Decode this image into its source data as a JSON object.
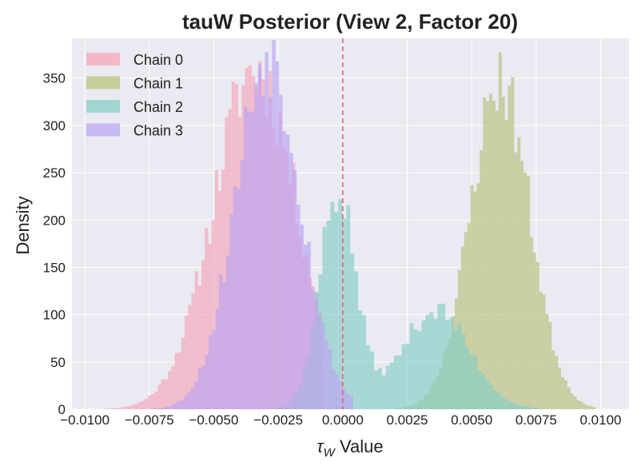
{
  "chart_data": {
    "type": "histogram",
    "title": "tauW Posterior (View 2, Factor 20)",
    "xlabel_symbol": "τ",
    "xlabel_sub": "W",
    "xlabel_rest": " Value",
    "ylabel": "Density",
    "xlim": [
      -0.0105,
      0.0111
    ],
    "ylim": [
      0,
      392
    ],
    "xticks": [
      -0.01,
      -0.0075,
      -0.005,
      -0.0025,
      0.0,
      0.0025,
      0.005,
      0.0075,
      0.01
    ],
    "xtick_labels": [
      "−0.0100",
      "−0.0075",
      "−0.0050",
      "−0.0025",
      "0.0000",
      "0.0025",
      "0.0050",
      "0.0075",
      "0.0100"
    ],
    "yticks": [
      0,
      50,
      100,
      150,
      200,
      250,
      300,
      350
    ],
    "ytick_labels": [
      "0",
      "50",
      "100",
      "150",
      "200",
      "250",
      "300",
      "350"
    ],
    "grid": true,
    "legend_position": "top-left",
    "vline": {
      "x": 0.0,
      "color": "#e8636e",
      "style": "dashed"
    },
    "series": [
      {
        "name": "Chain 0",
        "color": "#f4a7b9",
        "mode": "normal",
        "center": -0.0034,
        "sd": 0.0016,
        "peak": 360,
        "x_min": -0.0099,
        "x_max": -0.0008,
        "bins": 70,
        "seed": 11
      },
      {
        "name": "Chain 1",
        "color": "#b9c17e",
        "mode": "normal",
        "center": 0.0061,
        "sd": 0.00115,
        "peak": 348,
        "x_min": 0.0018,
        "x_max": 0.0098,
        "bins": 66,
        "seed": 23
      },
      {
        "name": "Chain 2",
        "color": "#87cfc6",
        "mode": "bimodal",
        "c1": -0.0002,
        "s1": 0.0007,
        "p1": 230,
        "c2": 0.0036,
        "s2": 0.0013,
        "p2": 105,
        "x_min": -0.0034,
        "x_max": 0.0089,
        "bins": 80,
        "seed": 37
      },
      {
        "name": "Chain 3",
        "color": "#bba5f2",
        "mode": "normal",
        "center": -0.0029,
        "sd": 0.00125,
        "peak": 375,
        "x_min": -0.0078,
        "x_max": 0.0004,
        "bins": 60,
        "seed": 53
      }
    ]
  }
}
